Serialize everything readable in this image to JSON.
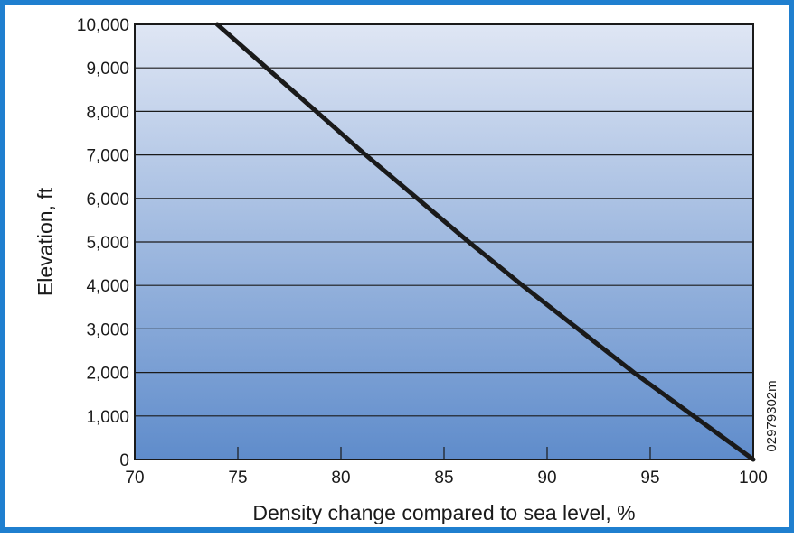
{
  "chart_data": {
    "type": "line",
    "title": "",
    "xlabel": "Density change compared to sea level, %",
    "ylabel": "Elevation, ft",
    "xlim": [
      70,
      100
    ],
    "ylim": [
      0,
      10000
    ],
    "x_ticks": [
      70,
      75,
      80,
      85,
      90,
      95,
      100
    ],
    "x_tick_labels": [
      "70",
      "75",
      "80",
      "85",
      "90",
      "95",
      "100"
    ],
    "y_ticks": [
      0,
      1000,
      2000,
      3000,
      4000,
      5000,
      6000,
      7000,
      8000,
      9000,
      10000
    ],
    "y_tick_labels": [
      "0",
      "1,000",
      "2,000",
      "3,000",
      "4,000",
      "5,000",
      "6,000",
      "7,000",
      "8,000",
      "9,000",
      "10,000"
    ],
    "grid": "horizontal",
    "series": [
      {
        "x": [
          100,
          97.1,
          94.2,
          91.5,
          88.8,
          86.2,
          83.7,
          81.2,
          78.8,
          76.4,
          74.0
        ],
        "y": [
          0,
          1000,
          2000,
          3000,
          4000,
          5000,
          6000,
          7000,
          8000,
          9000,
          10000
        ]
      }
    ],
    "annotation": "02979302m",
    "colors": {
      "frame": "#1f7fcf",
      "gradient_top": "#dfe6f4",
      "gradient_bottom": "#5f8ccb",
      "line": "#1a1a1a",
      "grid": "#1a1a1a"
    }
  }
}
